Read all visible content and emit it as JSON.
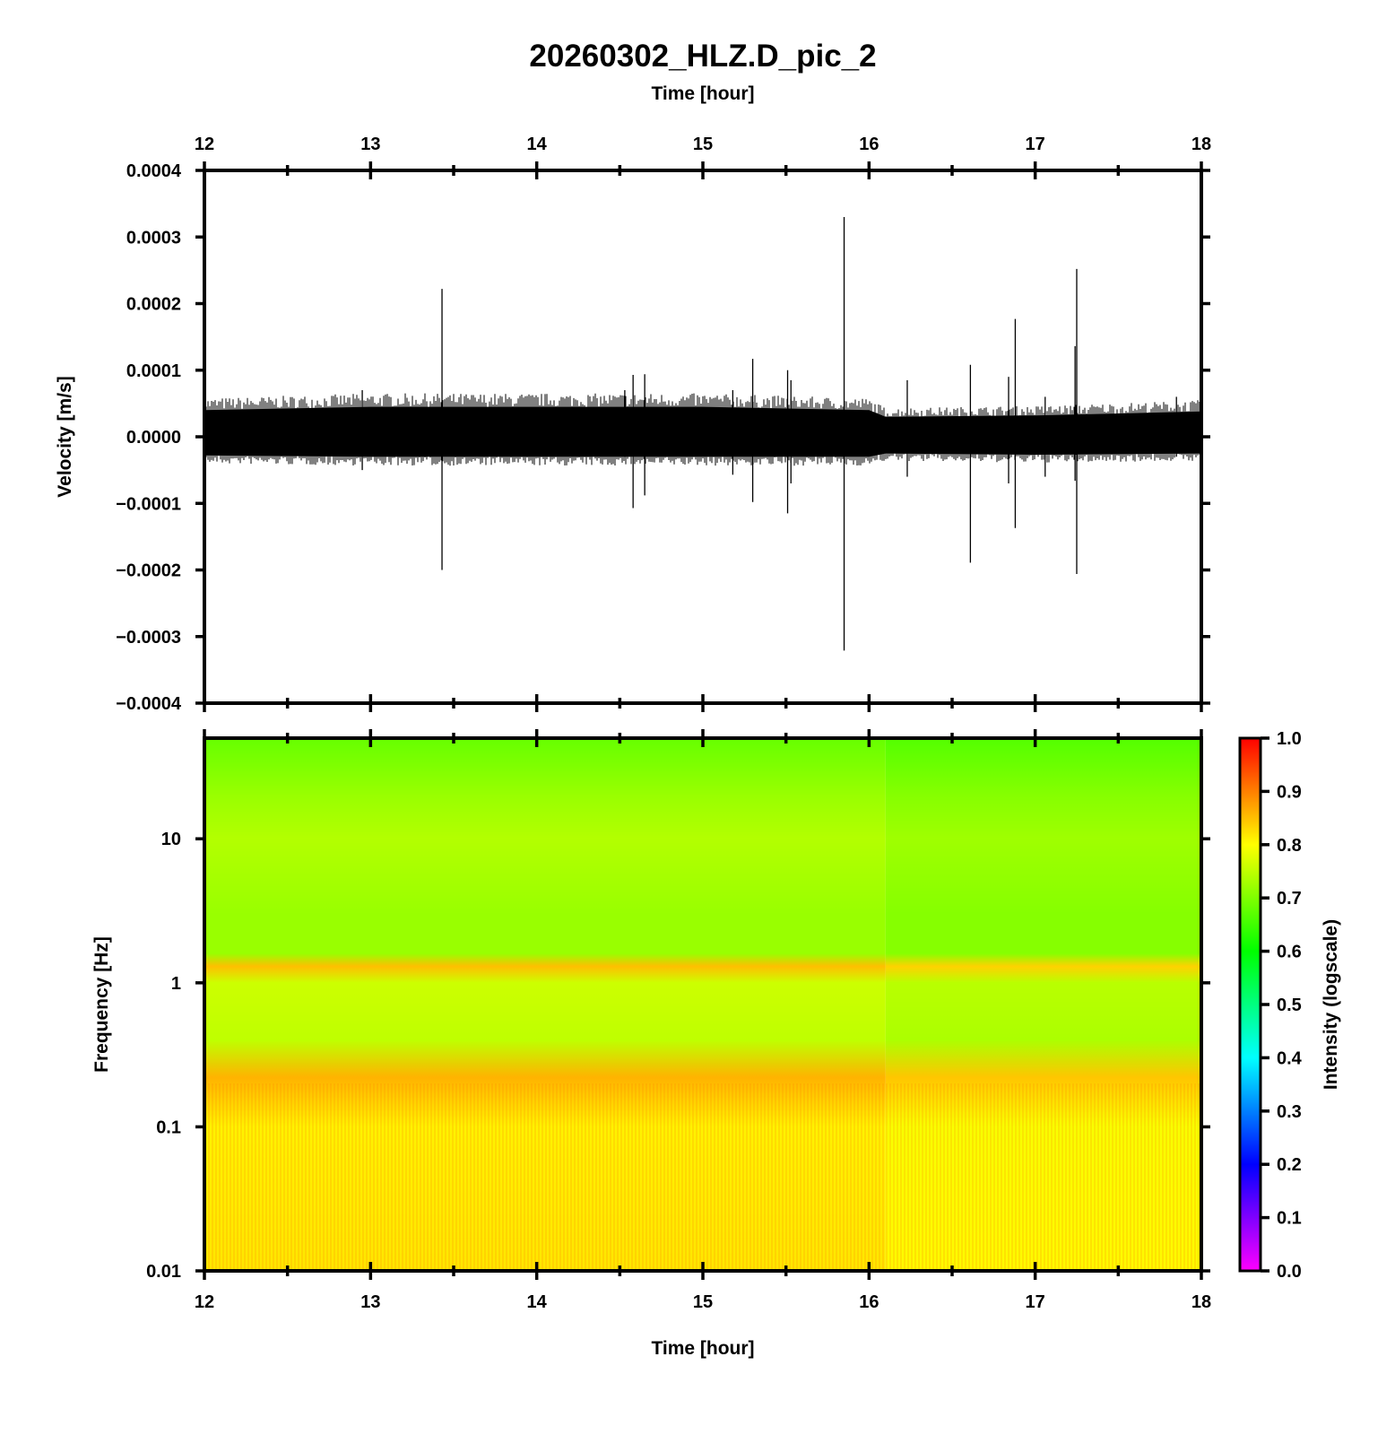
{
  "chart_data": [
    {
      "panel": "waveform",
      "type": "line",
      "title": "20260302_HLZ.D_pic_2",
      "top_xlabel": "Time [hour]",
      "xlabel": "",
      "ylabel": "Velocity [m/s]",
      "xlim": [
        12,
        18
      ],
      "ylim": [
        -0.0004,
        0.0004
      ],
      "x_ticks": [
        "12",
        "13",
        "14",
        "15",
        "16",
        "17",
        "18"
      ],
      "y_ticks": [
        "0.0004",
        "0.0003",
        "0.0002",
        "0.0001",
        "0.0000",
        "−0.0001",
        "−0.0002",
        "−0.0003",
        "−0.0004"
      ],
      "noise_band": [
        {
          "x": 12.0,
          "upper": 4e-05,
          "lower": -2.8e-05
        },
        {
          "x": 13.0,
          "upper": 4.5e-05,
          "lower": -3e-05
        },
        {
          "x": 14.0,
          "upper": 4.5e-05,
          "lower": -3e-05
        },
        {
          "x": 15.0,
          "upper": 4.5e-05,
          "lower": -3e-05
        },
        {
          "x": 16.0,
          "upper": 4e-05,
          "lower": -3e-05
        },
        {
          "x": 16.1,
          "upper": 3e-05,
          "lower": -2.5e-05
        },
        {
          "x": 17.0,
          "upper": 3.2e-05,
          "lower": -2.7e-05
        },
        {
          "x": 18.0,
          "upper": 3.8e-05,
          "lower": -2.5e-05
        }
      ],
      "spikes": [
        {
          "x": 12.95,
          "max": 7e-05,
          "min": -5e-05
        },
        {
          "x": 13.43,
          "max": 0.000222,
          "min": -0.0002
        },
        {
          "x": 14.53,
          "max": 7e-05,
          "min": -3e-05
        },
        {
          "x": 14.58,
          "max": 9.3e-05,
          "min": -0.000107
        },
        {
          "x": 14.65,
          "max": 9.4e-05,
          "min": -8.8e-05
        },
        {
          "x": 15.18,
          "max": 7e-05,
          "min": -5.7e-05
        },
        {
          "x": 15.3,
          "max": 0.000117,
          "min": -9.8e-05
        },
        {
          "x": 15.51,
          "max": 0.0001,
          "min": -0.000115
        },
        {
          "x": 15.53,
          "max": 8.5e-05,
          "min": -7e-05
        },
        {
          "x": 15.85,
          "max": 0.00033,
          "min": -0.000321
        },
        {
          "x": 16.23,
          "max": 8.5e-05,
          "min": -6e-05
        },
        {
          "x": 16.61,
          "max": 0.000108,
          "min": -0.000189
        },
        {
          "x": 16.84,
          "max": 9e-05,
          "min": -7e-05
        },
        {
          "x": 16.88,
          "max": 0.000177,
          "min": -0.000137
        },
        {
          "x": 17.06,
          "max": 6e-05,
          "min": -6e-05
        },
        {
          "x": 17.24,
          "max": 0.000136,
          "min": -6.6e-05
        },
        {
          "x": 17.25,
          "max": 0.000252,
          "min": -0.000206
        },
        {
          "x": 17.85,
          "max": 6e-05,
          "min": -3e-05
        }
      ]
    },
    {
      "panel": "spectrogram",
      "type": "heatmap",
      "xlabel": "Time [hour]",
      "ylabel": "Frequency [Hz]",
      "xlim": [
        12,
        18
      ],
      "ylim": [
        0.01,
        50
      ],
      "y_scale": "log",
      "x_ticks": [
        "12",
        "13",
        "14",
        "15",
        "16",
        "17",
        "18"
      ],
      "y_ticks": [
        "10",
        "1",
        "0.1",
        "0.01"
      ],
      "colorbar": {
        "label": "Intensity (logscale)",
        "range": [
          0,
          1
        ],
        "ticks": [
          "1.0",
          "0.9",
          "0.8",
          "0.7",
          "0.6",
          "0.5",
          "0.4",
          "0.3",
          "0.2",
          "0.1",
          "0.0"
        ],
        "colormap": [
          "#ff00ff",
          "#0000ff",
          "#00ffff",
          "#00ff00",
          "#ffff00",
          "#ff0000"
        ]
      },
      "intensity_profile": [
        {
          "freq": 50,
          "intensity": 0.68
        },
        {
          "freq": 20,
          "intensity": 0.72
        },
        {
          "freq": 10,
          "intensity": 0.74
        },
        {
          "freq": 3,
          "intensity": 0.72
        },
        {
          "freq": 1.6,
          "intensity": 0.72
        },
        {
          "freq": 1.3,
          "intensity": 0.85
        },
        {
          "freq": 1.0,
          "intensity": 0.76
        },
        {
          "freq": 0.4,
          "intensity": 0.75
        },
        {
          "freq": 0.22,
          "intensity": 0.86
        },
        {
          "freq": 0.1,
          "intensity": 0.81
        },
        {
          "freq": 0.01,
          "intensity": 0.82
        }
      ],
      "change_time": 16.1
    }
  ]
}
